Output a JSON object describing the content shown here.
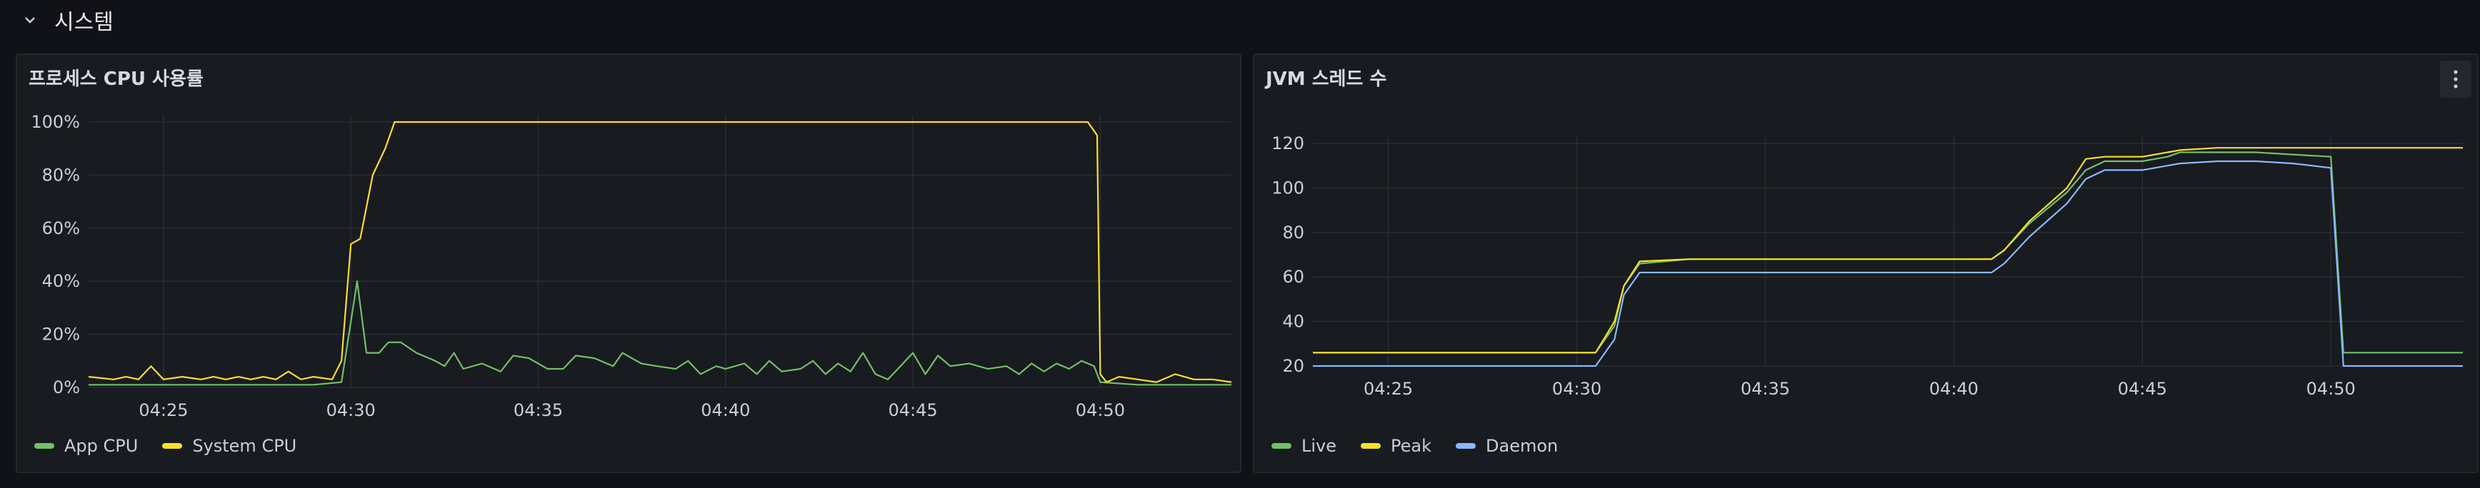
{
  "row": {
    "title": "시스템",
    "chevron_icon": "chevron-down-icon"
  },
  "panels": [
    {
      "title": "프로세스 CPU 사용률",
      "legend": [
        {
          "label": "App CPU",
          "color": "#73bf69"
        },
        {
          "label": "System CPU",
          "color": "#fade2a"
        }
      ],
      "chart_data": {
        "type": "line",
        "title": "프로세스 CPU 사용률",
        "x_range": [
          "04:23",
          "04:53:30"
        ],
        "x_ticks": [
          "04:25",
          "04:30",
          "04:35",
          "04:40",
          "04:45",
          "04:50"
        ],
        "y_ticks": [
          "0%",
          "20%",
          "40%",
          "60%",
          "80%",
          "100%"
        ],
        "ylim": [
          0,
          100
        ],
        "grid": true,
        "legend_position": "bottom-left",
        "series": [
          {
            "name": "App CPU",
            "color": "#73bf69",
            "points": [
              [
                "04:23",
                1
              ],
              [
                "04:25",
                1
              ],
              [
                "04:27",
                1
              ],
              [
                "04:29",
                1
              ],
              [
                "04:29:45",
                2
              ],
              [
                "04:30:10",
                40
              ],
              [
                "04:30:25",
                13
              ],
              [
                "04:30:45",
                13
              ],
              [
                "04:31",
                17
              ],
              [
                "04:31:20",
                17
              ],
              [
                "04:31:45",
                13
              ],
              [
                "04:32:15",
                10
              ],
              [
                "04:32:30",
                8
              ],
              [
                "04:32:45",
                13
              ],
              [
                "04:33",
                7
              ],
              [
                "04:33:30",
                9
              ],
              [
                "04:34",
                6
              ],
              [
                "04:34:20",
                12
              ],
              [
                "04:34:45",
                11
              ],
              [
                "04:35:15",
                7
              ],
              [
                "04:35:40",
                7
              ],
              [
                "04:36",
                12
              ],
              [
                "04:36:30",
                11
              ],
              [
                "04:37",
                8
              ],
              [
                "04:37:15",
                13
              ],
              [
                "04:37:45",
                9
              ],
              [
                "04:38:10",
                8
              ],
              [
                "04:38:40",
                7
              ],
              [
                "04:39",
                10
              ],
              [
                "04:39:20",
                5
              ],
              [
                "04:39:45",
                8
              ],
              [
                "04:40",
                7
              ],
              [
                "04:40:30",
                9
              ],
              [
                "04:40:50",
                5
              ],
              [
                "04:41:10",
                10
              ],
              [
                "04:41:30",
                6
              ],
              [
                "04:42",
                7
              ],
              [
                "04:42:20",
                10
              ],
              [
                "04:42:40",
                5
              ],
              [
                "04:43",
                9
              ],
              [
                "04:43:20",
                6
              ],
              [
                "04:43:40",
                13
              ],
              [
                "04:44",
                5
              ],
              [
                "04:44:20",
                3
              ],
              [
                "04:44:40",
                8
              ],
              [
                "04:45",
                13
              ],
              [
                "04:45:20",
                5
              ],
              [
                "04:45:40",
                12
              ],
              [
                "04:46",
                8
              ],
              [
                "04:46:30",
                9
              ],
              [
                "04:47",
                7
              ],
              [
                "04:47:30",
                8
              ],
              [
                "04:47:50",
                5
              ],
              [
                "04:48:10",
                9
              ],
              [
                "04:48:30",
                6
              ],
              [
                "04:48:50",
                9
              ],
              [
                "04:49:10",
                7
              ],
              [
                "04:49:30",
                10
              ],
              [
                "04:49:50",
                8
              ],
              [
                "04:50",
                2
              ],
              [
                "04:51",
                1
              ],
              [
                "04:53:30",
                1
              ]
            ]
          },
          {
            "name": "System CPU",
            "color": "#fade2a",
            "points": [
              [
                "04:23",
                4
              ],
              [
                "04:23:40",
                3
              ],
              [
                "04:24",
                4
              ],
              [
                "04:24:20",
                3
              ],
              [
                "04:24:40",
                8
              ],
              [
                "04:25",
                3
              ],
              [
                "04:25:30",
                4
              ],
              [
                "04:26",
                3
              ],
              [
                "04:26:20",
                4
              ],
              [
                "04:26:40",
                3
              ],
              [
                "04:27",
                4
              ],
              [
                "04:27:20",
                3
              ],
              [
                "04:27:40",
                4
              ],
              [
                "04:28",
                3
              ],
              [
                "04:28:20",
                6
              ],
              [
                "04:28:40",
                3
              ],
              [
                "04:29",
                4
              ],
              [
                "04:29:30",
                3
              ],
              [
                "04:29:45",
                10
              ],
              [
                "04:30",
                54
              ],
              [
                "04:30:15",
                56
              ],
              [
                "04:30:35",
                80
              ],
              [
                "04:30:55",
                90
              ],
              [
                "04:31:10",
                100
              ],
              [
                "04:49:40",
                100
              ],
              [
                "04:49:55",
                95
              ],
              [
                "04:50",
                5
              ],
              [
                "04:50:10",
                2
              ],
              [
                "04:50:30",
                4
              ],
              [
                "04:51",
                3
              ],
              [
                "04:51:30",
                2
              ],
              [
                "04:52",
                5
              ],
              [
                "04:52:30",
                3
              ],
              [
                "04:53",
                3
              ],
              [
                "04:53:30",
                2
              ]
            ]
          }
        ]
      }
    },
    {
      "title": "JVM 스레드 수",
      "menu_icon": "more-vertical-icon",
      "legend": [
        {
          "label": "Live",
          "color": "#73bf69"
        },
        {
          "label": "Peak",
          "color": "#fade2a"
        },
        {
          "label": "Daemon",
          "color": "#8ab8ff"
        }
      ],
      "chart_data": {
        "type": "line",
        "title": "JVM 스레드 수",
        "x_range": [
          "04:23",
          "04:53:30"
        ],
        "x_ticks": [
          "04:25",
          "04:30",
          "04:35",
          "04:40",
          "04:45",
          "04:50"
        ],
        "y_ticks": [
          "20",
          "40",
          "60",
          "80",
          "100",
          "120"
        ],
        "ylim": [
          20,
          120
        ],
        "grid": true,
        "legend_position": "bottom-left",
        "series": [
          {
            "name": "Live",
            "color": "#73bf69",
            "points": [
              [
                "04:23",
                26
              ],
              [
                "04:30:30",
                26
              ],
              [
                "04:31",
                38
              ],
              [
                "04:31:15",
                56
              ],
              [
                "04:31:40",
                66
              ],
              [
                "04:33",
                68
              ],
              [
                "04:41",
                68
              ],
              [
                "04:41:20",
                72
              ],
              [
                "04:42",
                84
              ],
              [
                "04:43",
                98
              ],
              [
                "04:43:30",
                108
              ],
              [
                "04:44",
                112
              ],
              [
                "04:45",
                112
              ],
              [
                "04:45:40",
                114
              ],
              [
                "04:46",
                116
              ],
              [
                "04:47",
                116
              ],
              [
                "04:48",
                116
              ],
              [
                "04:49",
                115
              ],
              [
                "04:50",
                114
              ],
              [
                "04:50:20",
                26
              ],
              [
                "04:53:30",
                26
              ]
            ]
          },
          {
            "name": "Peak",
            "color": "#fade2a",
            "points": [
              [
                "04:23",
                26
              ],
              [
                "04:30:30",
                26
              ],
              [
                "04:31",
                40
              ],
              [
                "04:31:15",
                56
              ],
              [
                "04:31:40",
                67
              ],
              [
                "04:33",
                68
              ],
              [
                "04:41",
                68
              ],
              [
                "04:41:20",
                72
              ],
              [
                "04:42",
                85
              ],
              [
                "04:43",
                100
              ],
              [
                "04:43:30",
                113
              ],
              [
                "04:44",
                114
              ],
              [
                "04:45",
                114
              ],
              [
                "04:45:40",
                116
              ],
              [
                "04:46",
                117
              ],
              [
                "04:47",
                118
              ],
              [
                "04:50",
                118
              ],
              [
                "04:53:30",
                118
              ]
            ]
          },
          {
            "name": "Daemon",
            "color": "#8ab8ff",
            "points": [
              [
                "04:23",
                20
              ],
              [
                "04:30:30",
                20
              ],
              [
                "04:31",
                32
              ],
              [
                "04:31:15",
                52
              ],
              [
                "04:31:40",
                62
              ],
              [
                "04:33",
                62
              ],
              [
                "04:41",
                62
              ],
              [
                "04:41:20",
                66
              ],
              [
                "04:42",
                78
              ],
              [
                "04:43",
                93
              ],
              [
                "04:43:30",
                104
              ],
              [
                "04:44",
                108
              ],
              [
                "04:45",
                108
              ],
              [
                "04:45:40",
                110
              ],
              [
                "04:46",
                111
              ],
              [
                "04:47",
                112
              ],
              [
                "04:48",
                112
              ],
              [
                "04:49",
                111
              ],
              [
                "04:50",
                109
              ],
              [
                "04:50:20",
                20
              ],
              [
                "04:53:30",
                20
              ]
            ]
          }
        ]
      }
    }
  ]
}
